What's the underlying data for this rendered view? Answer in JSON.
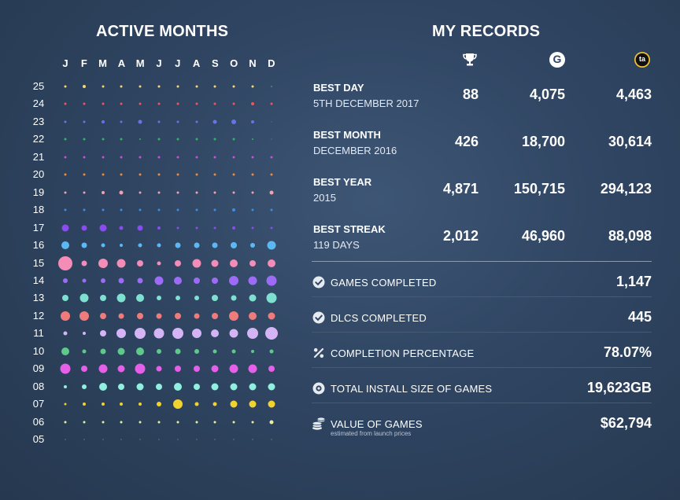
{
  "active_months": {
    "title": "ACTIVE MONTHS",
    "months": [
      "J",
      "F",
      "M",
      "A",
      "M",
      "J",
      "J",
      "A",
      "S",
      "O",
      "N",
      "D"
    ],
    "years": [
      {
        "label": "25",
        "color": "#f7d774",
        "sizes": [
          3,
          4,
          3,
          3,
          3,
          3,
          3,
          3,
          3,
          3,
          3,
          2
        ],
        "fade": [
          1,
          1,
          1,
          1,
          1,
          1,
          1,
          1,
          1,
          1,
          1,
          0.35
        ]
      },
      {
        "label": "24",
        "color": "#f0555a",
        "sizes": [
          3,
          3,
          3,
          3,
          3,
          3,
          3,
          3,
          3,
          3,
          4,
          3
        ],
        "fade": [
          1,
          1,
          1,
          1,
          1,
          1,
          1,
          1,
          1,
          1,
          1,
          1
        ]
      },
      {
        "label": "23",
        "color": "#6b72e6",
        "sizes": [
          3,
          3,
          4,
          3,
          5,
          3,
          3,
          3,
          5,
          6,
          4,
          2
        ],
        "fade": [
          1,
          1,
          1,
          1,
          1,
          1,
          1,
          1,
          1,
          1,
          1,
          0.35
        ]
      },
      {
        "label": "22",
        "color": "#2fb569",
        "sizes": [
          3,
          3,
          3,
          3,
          2,
          3,
          3,
          3,
          3,
          3,
          2,
          2
        ],
        "fade": [
          1,
          1,
          1,
          1,
          1,
          1,
          1,
          1,
          1,
          1,
          1,
          0.35
        ]
      },
      {
        "label": "21",
        "color": "#c94fd6",
        "sizes": [
          3,
          3,
          3,
          3,
          3,
          3,
          3,
          3,
          3,
          3,
          3,
          3
        ],
        "fade": [
          1,
          1,
          1,
          1,
          1,
          1,
          1,
          1,
          1,
          1,
          1,
          1
        ]
      },
      {
        "label": "20",
        "color": "#f08a3c",
        "sizes": [
          3,
          3,
          3,
          3,
          3,
          3,
          3,
          3,
          3,
          3,
          3,
          3
        ],
        "fade": [
          1,
          1,
          1,
          1,
          1,
          1,
          1,
          1,
          1,
          1,
          1,
          1
        ]
      },
      {
        "label": "19",
        "color": "#f4a0b0",
        "sizes": [
          3,
          3,
          4,
          5,
          3,
          3,
          3,
          3,
          3,
          3,
          3,
          5
        ],
        "fade": [
          1,
          1,
          1,
          1,
          1,
          1,
          1,
          1,
          1,
          1,
          1,
          1
        ]
      },
      {
        "label": "18",
        "color": "#3a8ee6",
        "sizes": [
          3,
          3,
          3,
          3,
          3,
          3,
          3,
          3,
          3,
          4,
          3,
          3
        ],
        "fade": [
          1,
          1,
          1,
          1,
          1,
          1,
          1,
          1,
          1,
          1,
          1,
          1
        ]
      },
      {
        "label": "17",
        "color": "#8a4cf0",
        "sizes": [
          9,
          7,
          9,
          5,
          7,
          4,
          3,
          3,
          3,
          4,
          3,
          3
        ],
        "fade": [
          1,
          1,
          1,
          1,
          1,
          1,
          1,
          1,
          1,
          1,
          1,
          1
        ]
      },
      {
        "label": "16",
        "color": "#5cb8f5",
        "sizes": [
          10,
          7,
          5,
          4,
          5,
          5,
          7,
          7,
          7,
          8,
          6,
          11
        ],
        "fade": [
          1,
          1,
          1,
          1,
          1,
          1,
          1,
          1,
          1,
          1,
          1,
          1
        ]
      },
      {
        "label": "15",
        "color": "#f48cb8",
        "sizes": [
          18,
          7,
          12,
          11,
          8,
          5,
          8,
          11,
          9,
          10,
          8,
          10
        ],
        "fade": [
          1,
          1,
          1,
          1,
          1,
          1,
          1,
          1,
          1,
          1,
          1,
          1
        ]
      },
      {
        "label": "14",
        "color": "#9d6bf5",
        "sizes": [
          6,
          5,
          6,
          7,
          7,
          11,
          10,
          8,
          8,
          12,
          11,
          13
        ],
        "fade": [
          1,
          1,
          1,
          1,
          1,
          1,
          1,
          1,
          1,
          1,
          1,
          1
        ]
      },
      {
        "label": "13",
        "color": "#7ee0d0",
        "sizes": [
          8,
          11,
          8,
          11,
          10,
          6,
          6,
          6,
          8,
          7,
          9,
          13
        ],
        "fade": [
          1,
          1,
          1,
          1,
          1,
          1,
          1,
          1,
          1,
          1,
          1,
          1
        ]
      },
      {
        "label": "12",
        "color": "#f07b7b",
        "sizes": [
          12,
          12,
          8,
          7,
          8,
          7,
          8,
          7,
          8,
          12,
          10,
          9
        ],
        "fade": [
          1,
          1,
          1,
          1,
          1,
          1,
          1,
          1,
          1,
          1,
          1,
          1
        ]
      },
      {
        "label": "11",
        "color": "#d4b4f5",
        "sizes": [
          5,
          4,
          8,
          12,
          14,
          13,
          14,
          12,
          10,
          11,
          14,
          16
        ],
        "fade": [
          1,
          1,
          1,
          1,
          1,
          1,
          1,
          1,
          1,
          1,
          1,
          1
        ]
      },
      {
        "label": "10",
        "color": "#5ec98a",
        "sizes": [
          10,
          5,
          7,
          9,
          10,
          6,
          7,
          6,
          5,
          5,
          4,
          5
        ],
        "fade": [
          1,
          1,
          1,
          1,
          1,
          1,
          1,
          1,
          1,
          1,
          1,
          1
        ]
      },
      {
        "label": "09",
        "color": "#e55fe8",
        "sizes": [
          13,
          8,
          11,
          9,
          13,
          7,
          8,
          8,
          9,
          11,
          11,
          8
        ],
        "fade": [
          1,
          1,
          1,
          1,
          1,
          1,
          1,
          1,
          1,
          1,
          1,
          1
        ]
      },
      {
        "label": "08",
        "color": "#8ff0df",
        "sizes": [
          4,
          6,
          10,
          8,
          9,
          8,
          10,
          8,
          9,
          9,
          9,
          9
        ],
        "fade": [
          1,
          1,
          1,
          1,
          1,
          1,
          1,
          1,
          1,
          1,
          1,
          1
        ]
      },
      {
        "label": "07",
        "color": "#f2d22e",
        "sizes": [
          3,
          4,
          4,
          4,
          4,
          6,
          12,
          5,
          5,
          9,
          9,
          9
        ],
        "fade": [
          1,
          1,
          1,
          1,
          1,
          1,
          1,
          1,
          1,
          1,
          1,
          1
        ]
      },
      {
        "label": "06",
        "color": "#e8f0a0",
        "sizes": [
          3,
          3,
          3,
          3,
          3,
          3,
          3,
          3,
          3,
          3,
          3,
          5
        ],
        "fade": [
          1,
          1,
          1,
          1,
          1,
          1,
          1,
          1,
          1,
          1,
          1,
          1
        ]
      },
      {
        "label": "05",
        "color": "#6a7a8c",
        "sizes": [
          2,
          2,
          2,
          2,
          2,
          2,
          2,
          2,
          2,
          2,
          2,
          2
        ],
        "fade": [
          0.6,
          0.6,
          0.6,
          0.6,
          0.6,
          0.6,
          0.6,
          0.6,
          0.6,
          0.6,
          0.6,
          0.6
        ]
      }
    ]
  },
  "records": {
    "title": "MY RECORDS",
    "columns": [
      {
        "icon": "trophy-icon"
      },
      {
        "icon": "g-badge-icon",
        "glyph": "G"
      },
      {
        "icon": "ta-badge-icon",
        "glyph": "ta"
      }
    ],
    "rows": [
      {
        "name": "BEST DAY",
        "sub": "5TH DECEMBER 2017",
        "values": [
          "88",
          "4,075",
          "4,463"
        ]
      },
      {
        "name": "BEST MONTH",
        "sub": "DECEMBER 2016",
        "values": [
          "426",
          "18,700",
          "30,614"
        ]
      },
      {
        "name": "BEST YEAR",
        "sub": "2015",
        "values": [
          "4,871",
          "150,715",
          "294,123"
        ]
      },
      {
        "name": "BEST STREAK",
        "sub": "119 DAYS",
        "values": [
          "2,012",
          "46,960",
          "88,098"
        ]
      }
    ]
  },
  "stats": [
    {
      "icon": "check-circle-icon",
      "label": "GAMES COMPLETED",
      "value": "1,147"
    },
    {
      "icon": "check-circle-icon",
      "label": "DLCS COMPLETED",
      "value": "445"
    },
    {
      "icon": "percent-icon",
      "label": "COMPLETION PERCENTAGE",
      "value": "78.07%"
    },
    {
      "icon": "disc-icon",
      "label": "TOTAL INSTALL SIZE OF GAMES",
      "value": "19,623GB"
    },
    {
      "icon": "coins-icon",
      "label": "VALUE OF GAMES",
      "sub": "estimated from launch prices",
      "value": "$62,794"
    }
  ],
  "colors": {
    "background": "#2f4562",
    "divider": "#4a5e78",
    "divider_strong": "#8a9ab0"
  }
}
